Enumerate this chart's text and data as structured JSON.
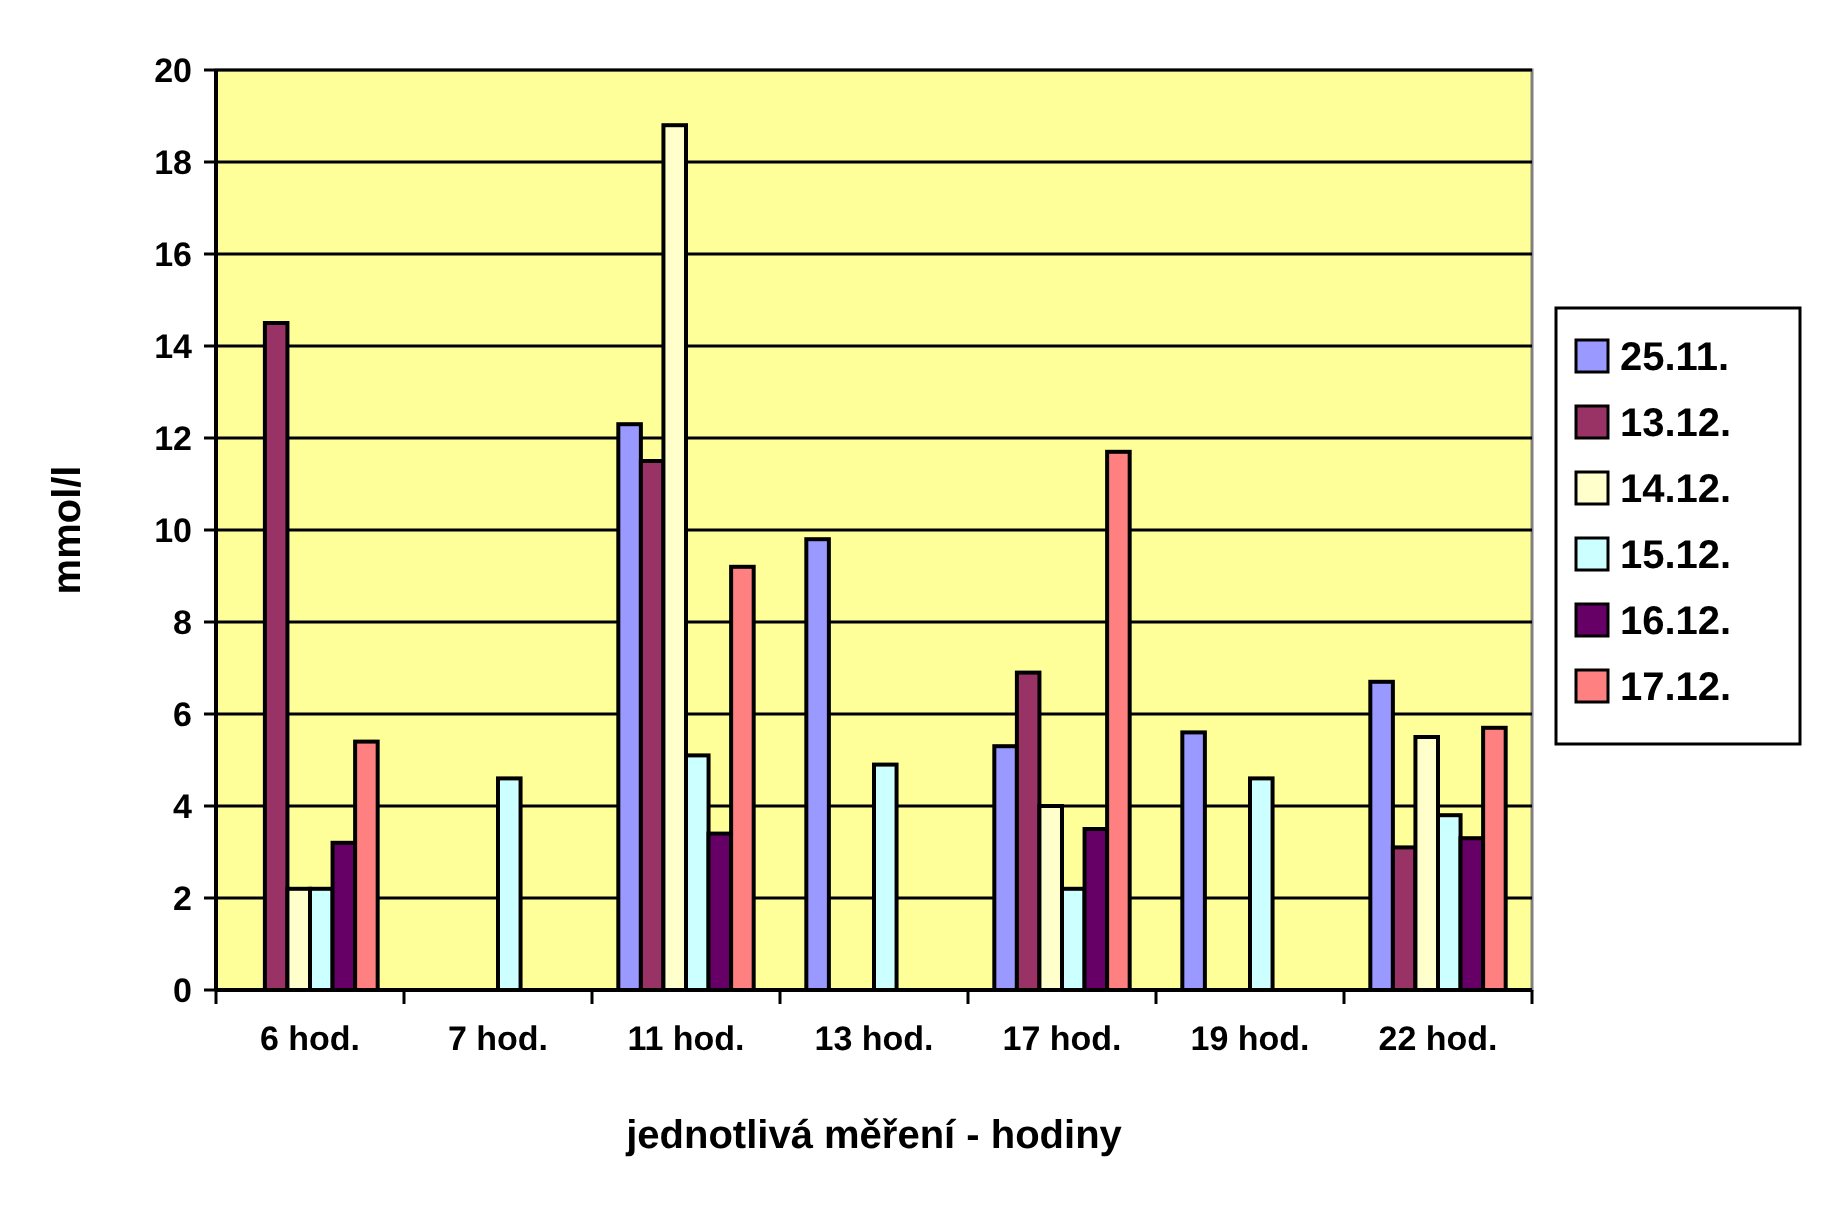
{
  "chart_data": {
    "type": "bar",
    "xlabel": "jednotlivá měření - hodiny",
    "ylabel": "mmol/l",
    "categories": [
      "6 hod.",
      "7 hod.",
      "11 hod.",
      "13 hod.",
      "17 hod.",
      "19 hod.",
      "22 hod."
    ],
    "series": [
      {
        "name": "25.11.",
        "color": "#9999ff",
        "values": [
          null,
          null,
          12.3,
          9.8,
          5.3,
          5.6,
          6.7
        ]
      },
      {
        "name": "13.12.",
        "color": "#993366",
        "values": [
          14.5,
          null,
          11.5,
          null,
          6.9,
          null,
          3.1
        ]
      },
      {
        "name": "14.12.",
        "color": "#ffffcc",
        "values": [
          2.2,
          null,
          18.8,
          null,
          4.0,
          null,
          5.5
        ]
      },
      {
        "name": "15.12.",
        "color": "#ccffff",
        "values": [
          2.2,
          4.6,
          5.1,
          4.9,
          2.2,
          4.6,
          3.8
        ]
      },
      {
        "name": "16.12.",
        "color": "#660066",
        "values": [
          3.2,
          null,
          3.4,
          null,
          3.5,
          null,
          3.3
        ]
      },
      {
        "name": "17.12.",
        "color": "#ff8080",
        "values": [
          5.4,
          null,
          9.2,
          null,
          11.7,
          null,
          5.7
        ]
      }
    ],
    "ylim": [
      0,
      20
    ],
    "yticks": [
      0,
      2,
      4,
      6,
      8,
      10,
      12,
      14,
      16,
      18,
      20
    ],
    "grid": "y",
    "legend": "right"
  }
}
